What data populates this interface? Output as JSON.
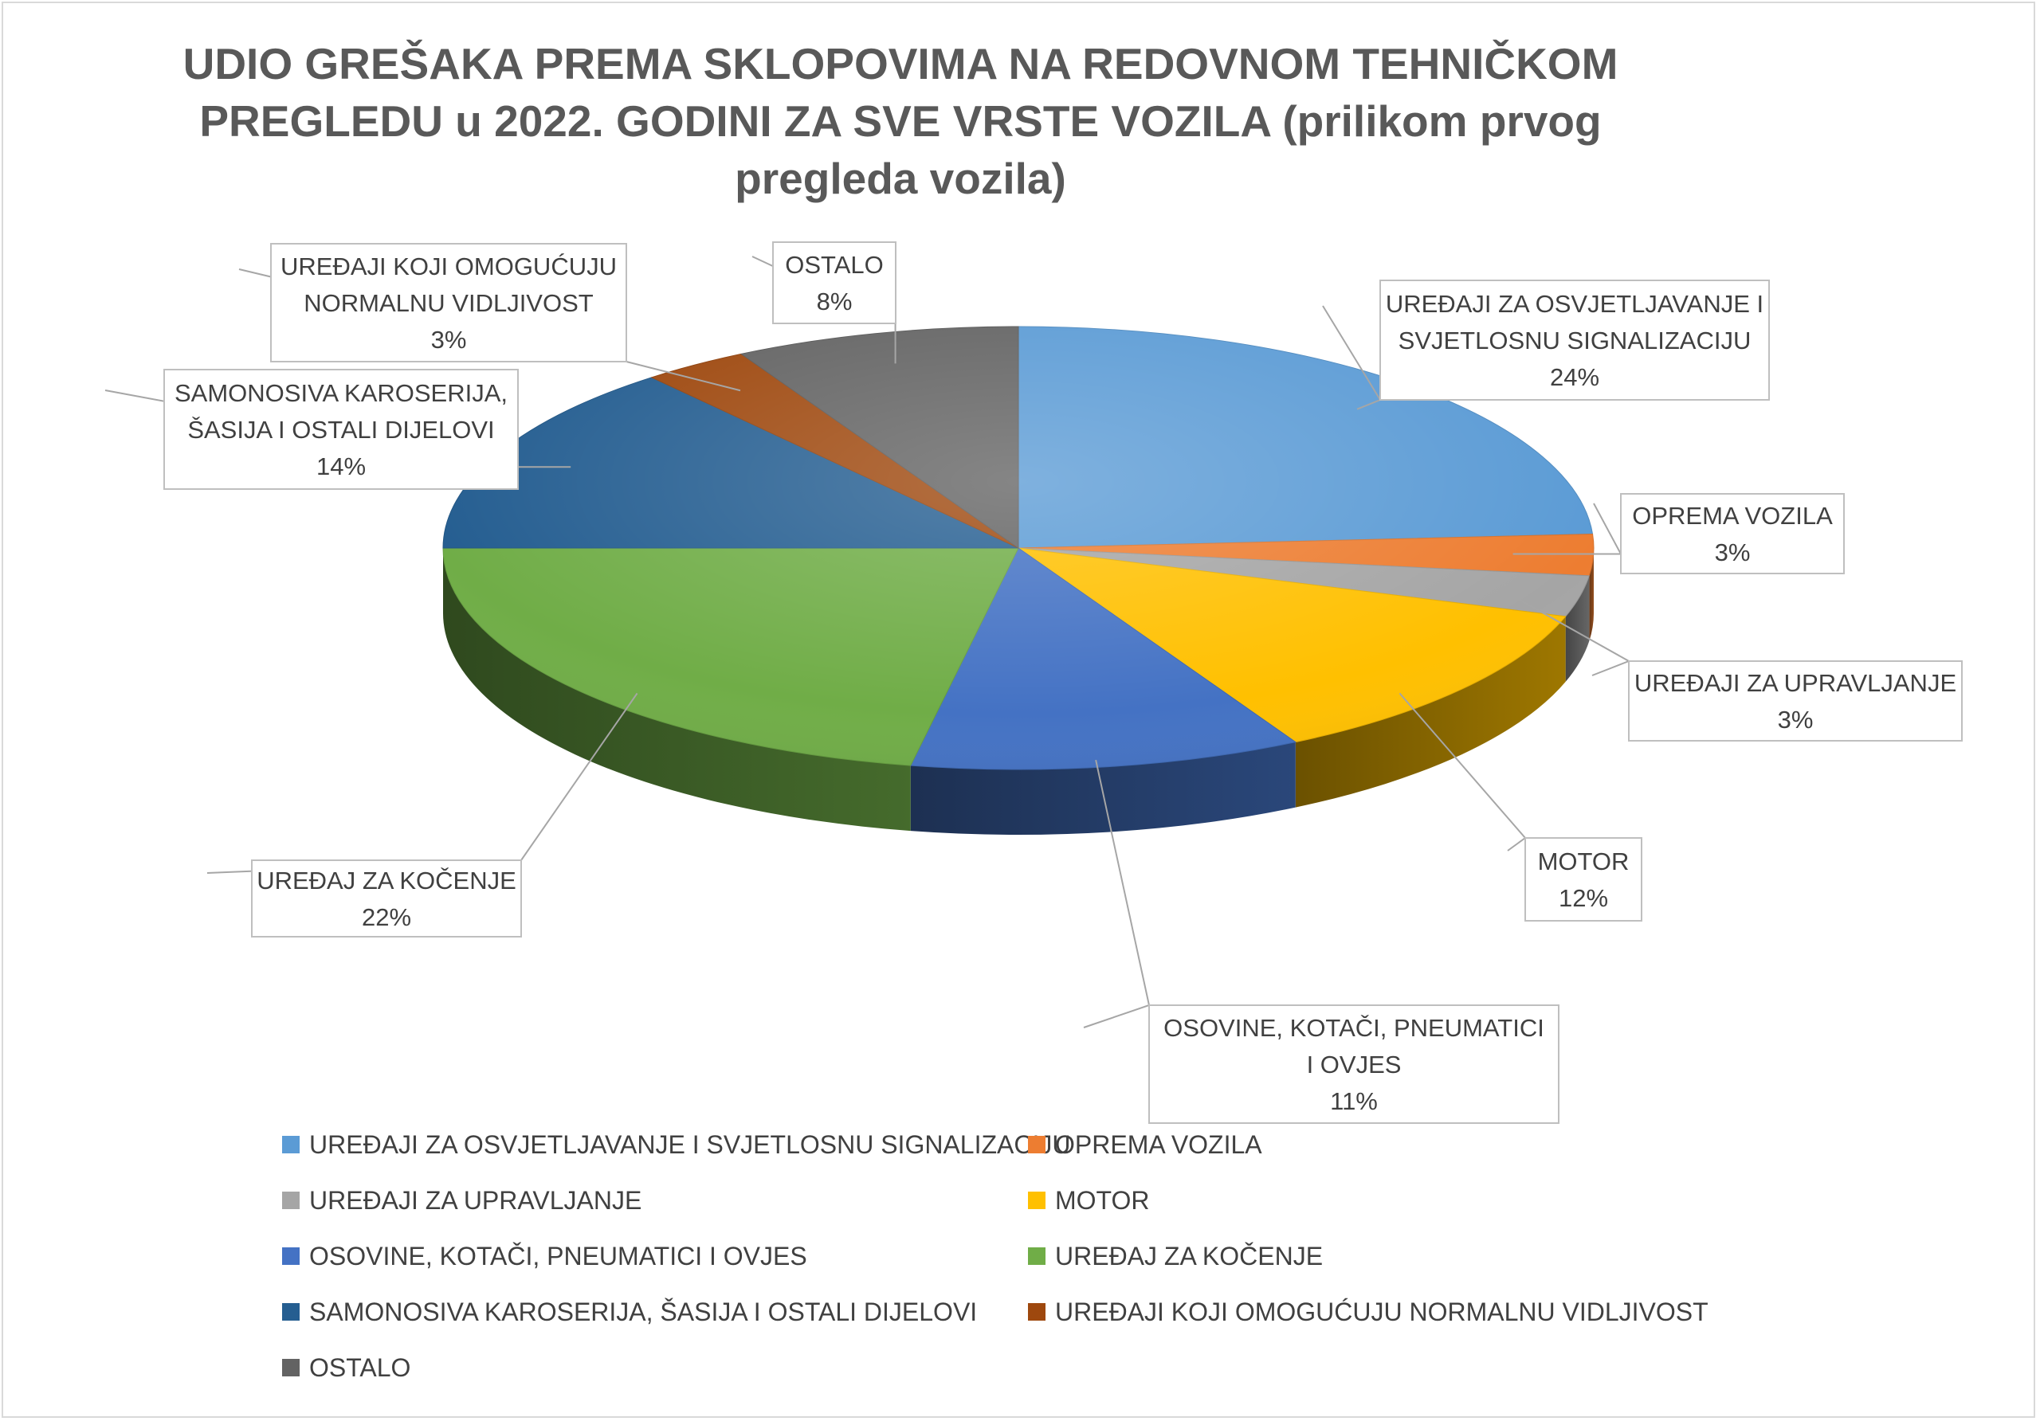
{
  "chart_data": {
    "type": "pie",
    "title": "UDIO GREŠAKA PREMA SKLOPOVIMA NA REDOVNOM TEHNIČKOM PREGLEDU u 2022. GODINI ZA SVE VRSTE VOZILA (prilikom prvog pregleda vozila)",
    "title_lines": [
      "UDIO GREŠAKA PREMA SKLOPOVIMA NA REDOVNOM TEHNIČKOM",
      "PREGLEDU u 2022. GODINI ZA SVE VRSTE VOZILA (prilikom prvog",
      "pregleda vozila)"
    ],
    "three_d": true,
    "legend_position": "bottom",
    "slices": [
      {
        "name": "UREĐAJI ZA OSVJETLJAVANJE I SVJETLOSNU SIGNALIZACIJU",
        "value": 24,
        "label_lines": [
          "UREĐAJI ZA OSVJETLJAVANJE I",
          "SVJETLOSNU SIGNALIZACIJU"
        ],
        "pct_label": "24%",
        "color": "#5B9BD5"
      },
      {
        "name": "OPREMA VOZILA",
        "value": 3,
        "label_lines": [
          "OPREMA VOZILA"
        ],
        "pct_label": "3%",
        "color": "#ED7D31"
      },
      {
        "name": "UREĐAJI ZA UPRAVLJANJE",
        "value": 3,
        "label_lines": [
          "UREĐAJI ZA UPRAVLJANJE"
        ],
        "pct_label": "3%",
        "color": "#A5A5A5"
      },
      {
        "name": "MOTOR",
        "value": 12,
        "label_lines": [
          "MOTOR"
        ],
        "pct_label": "12%",
        "color": "#FFC000"
      },
      {
        "name": "OSOVINE, KOTAČI, PNEUMATICI I OVJES",
        "value": 11,
        "label_lines": [
          "OSOVINE, KOTAČI, PNEUMATICI",
          "I OVJES"
        ],
        "pct_label": "11%",
        "color": "#4472C4"
      },
      {
        "name": "UREĐAJ ZA KOČENJE",
        "value": 22,
        "label_lines": [
          "UREĐAJ ZA KOČENJE"
        ],
        "pct_label": "22%",
        "color": "#70AD47"
      },
      {
        "name": "SAMONOSIVA KAROSERIJA, ŠASIJA I OSTALI DIJELOVI",
        "value": 14,
        "label_lines": [
          "SAMONOSIVA KAROSERIJA,",
          "ŠASIJA I OSTALI DIJELOVI"
        ],
        "pct_label": "14%",
        "color": "#255E91"
      },
      {
        "name": "UREĐAJI KOJI OMOGUĆUJU NORMALNU VIDLJIVOST",
        "value": 3,
        "label_lines": [
          "UREĐAJI KOJI OMOGUĆUJU",
          "NORMALNU VIDLJIVOST"
        ],
        "pct_label": "3%",
        "color": "#9E480E"
      },
      {
        "name": "OSTALO",
        "value": 8,
        "label_lines": [
          "OSTALO"
        ],
        "pct_label": "8%",
        "color": "#636363"
      }
    ]
  }
}
